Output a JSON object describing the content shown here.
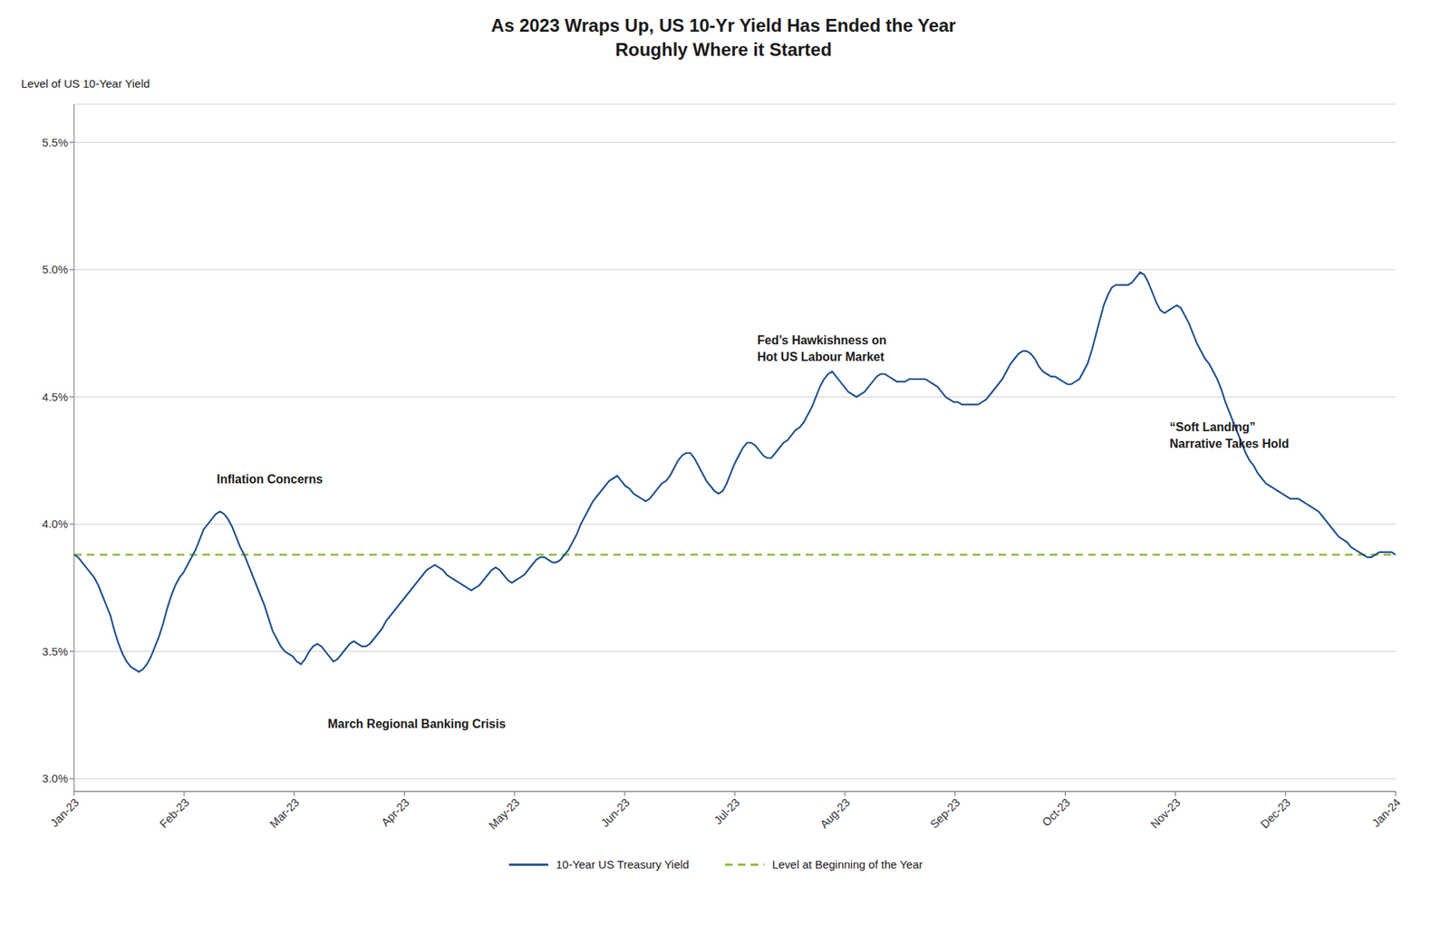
{
  "chart_data": {
    "type": "line",
    "title": "As 2023 Wraps Up, US 10-Yr Yield Has Ended the Year\nRoughly Where it Started",
    "ylabel": "Level of US 10-Year Yield",
    "xlim": [
      0,
      12
    ],
    "xticks": [
      {
        "value": 0,
        "label": "Jan-23"
      },
      {
        "value": 1,
        "label": "Feb-23"
      },
      {
        "value": 2,
        "label": "Mar-23"
      },
      {
        "value": 3,
        "label": "Apr-23"
      },
      {
        "value": 4,
        "label": "May-23"
      },
      {
        "value": 5,
        "label": "Jun-23"
      },
      {
        "value": 6,
        "label": "Jul-23"
      },
      {
        "value": 7,
        "label": "Aug-23"
      },
      {
        "value": 8,
        "label": "Sep-23"
      },
      {
        "value": 9,
        "label": "Oct-23"
      },
      {
        "value": 10,
        "label": "Nov-23"
      },
      {
        "value": 11,
        "label": "Dec-23"
      },
      {
        "value": 12,
        "label": "Jan-24"
      }
    ],
    "ylim": [
      2.95,
      5.65
    ],
    "yticks": [
      {
        "value": 3.0,
        "label": "3.0%"
      },
      {
        "value": 3.5,
        "label": "3.5%"
      },
      {
        "value": 4.0,
        "label": "4.0%"
      },
      {
        "value": 4.5,
        "label": "4.5%"
      },
      {
        "value": 5.0,
        "label": "5.0%"
      },
      {
        "value": 5.5,
        "label": "5.5%"
      }
    ],
    "grid": "y",
    "legend": "bottom",
    "series": [
      {
        "name": "10-Year US Treasury Yield",
        "color": "#1b4f8c",
        "line_style": "solid",
        "values": [
          3.88,
          3.87,
          3.85,
          3.83,
          3.81,
          3.79,
          3.76,
          3.72,
          3.68,
          3.64,
          3.58,
          3.53,
          3.49,
          3.46,
          3.44,
          3.43,
          3.42,
          3.43,
          3.45,
          3.48,
          3.52,
          3.56,
          3.61,
          3.67,
          3.72,
          3.76,
          3.79,
          3.81,
          3.84,
          3.87,
          3.9,
          3.94,
          3.98,
          4.0,
          4.02,
          4.04,
          4.05,
          4.04,
          4.02,
          3.99,
          3.95,
          3.91,
          3.88,
          3.84,
          3.8,
          3.76,
          3.72,
          3.68,
          3.63,
          3.58,
          3.55,
          3.52,
          3.5,
          3.49,
          3.48,
          3.46,
          3.45,
          3.47,
          3.5,
          3.52,
          3.53,
          3.52,
          3.5,
          3.48,
          3.46,
          3.47,
          3.49,
          3.51,
          3.53,
          3.54,
          3.53,
          3.52,
          3.52,
          3.53,
          3.55,
          3.57,
          3.59,
          3.62,
          3.64,
          3.66,
          3.68,
          3.7,
          3.72,
          3.74,
          3.76,
          3.78,
          3.8,
          3.82,
          3.83,
          3.84,
          3.83,
          3.82,
          3.8,
          3.79,
          3.78,
          3.77,
          3.76,
          3.75,
          3.74,
          3.75,
          3.76,
          3.78,
          3.8,
          3.82,
          3.83,
          3.82,
          3.8,
          3.78,
          3.77,
          3.78,
          3.79,
          3.8,
          3.82,
          3.84,
          3.86,
          3.87,
          3.87,
          3.86,
          3.85,
          3.85,
          3.86,
          3.88,
          3.9,
          3.93,
          3.96,
          4.0,
          4.03,
          4.06,
          4.09,
          4.11,
          4.13,
          4.15,
          4.17,
          4.18,
          4.19,
          4.17,
          4.15,
          4.14,
          4.12,
          4.11,
          4.1,
          4.09,
          4.1,
          4.12,
          4.14,
          4.16,
          4.17,
          4.19,
          4.22,
          4.25,
          4.27,
          4.28,
          4.28,
          4.26,
          4.23,
          4.2,
          4.17,
          4.15,
          4.13,
          4.12,
          4.13,
          4.16,
          4.2,
          4.24,
          4.27,
          4.3,
          4.32,
          4.32,
          4.31,
          4.29,
          4.27,
          4.26,
          4.26,
          4.28,
          4.3,
          4.32,
          4.33,
          4.35,
          4.37,
          4.38,
          4.4,
          4.43,
          4.46,
          4.5,
          4.54,
          4.57,
          4.59,
          4.6,
          4.58,
          4.56,
          4.54,
          4.52,
          4.51,
          4.5,
          4.51,
          4.52,
          4.54,
          4.56,
          4.58,
          4.59,
          4.59,
          4.58,
          4.57,
          4.56,
          4.56,
          4.56,
          4.57,
          4.57,
          4.57,
          4.57,
          4.57,
          4.56,
          4.55,
          4.54,
          4.52,
          4.5,
          4.49,
          4.48,
          4.48,
          4.47,
          4.47,
          4.47,
          4.47,
          4.47,
          4.48,
          4.49,
          4.51,
          4.53,
          4.55,
          4.57,
          4.6,
          4.63,
          4.65,
          4.67,
          4.68,
          4.68,
          4.67,
          4.65,
          4.62,
          4.6,
          4.59,
          4.58,
          4.58,
          4.57,
          4.56,
          4.55,
          4.55,
          4.56,
          4.57,
          4.6,
          4.63,
          4.68,
          4.74,
          4.8,
          4.86,
          4.9,
          4.93,
          4.94,
          4.94,
          4.94,
          4.94,
          4.95,
          4.97,
          4.99,
          4.98,
          4.95,
          4.91,
          4.87,
          4.84,
          4.83,
          4.84,
          4.85,
          4.86,
          4.85,
          4.82,
          4.79,
          4.75,
          4.71,
          4.68,
          4.65,
          4.63,
          4.6,
          4.57,
          4.53,
          4.48,
          4.44,
          4.4,
          4.36,
          4.32,
          4.28,
          4.25,
          4.23,
          4.2,
          4.18,
          4.16,
          4.15,
          4.14,
          4.13,
          4.12,
          4.11,
          4.1,
          4.1,
          4.1,
          4.09,
          4.08,
          4.07,
          4.06,
          4.05,
          4.03,
          4.01,
          3.99,
          3.97,
          3.95,
          3.94,
          3.93,
          3.91,
          3.9,
          3.89,
          3.88,
          3.87,
          3.87,
          3.88,
          3.89,
          3.89,
          3.89,
          3.89,
          3.88
        ]
      }
    ],
    "reference_lines": [
      {
        "name": "Level at Beginning of the Year",
        "value": 3.88,
        "color": "#8ab83a",
        "line_style": "dashed"
      }
    ],
    "annotations": [
      {
        "text": "Inflation Concerns"
      },
      {
        "text": "March Regional Banking Crisis"
      },
      {
        "text": "Fed’s Hawkishness on\nHot US Labour Market"
      },
      {
        "text": "“Soft Landing”\nNarrative Takes Hold"
      }
    ]
  }
}
